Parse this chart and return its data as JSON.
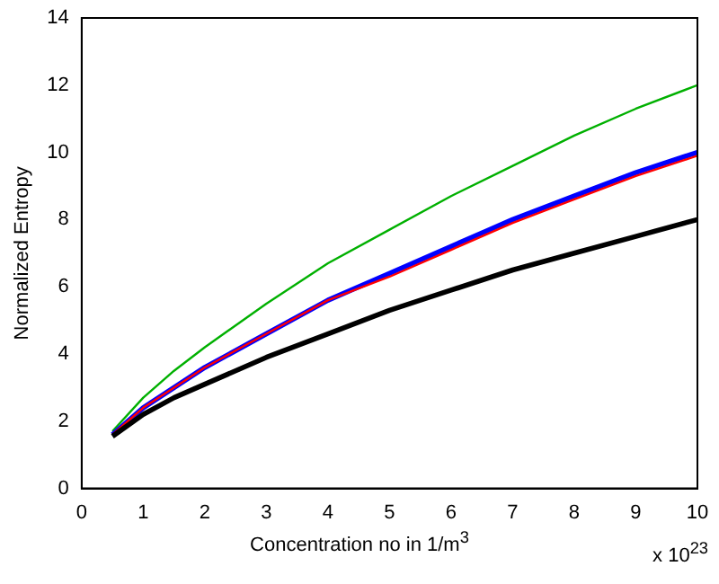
{
  "chart_data": {
    "type": "line",
    "xlabel": "Concentration no in 1/m$^{3}$",
    "ylabel": "Normalized Entropy",
    "annotations": [
      "x 10$^{23}$"
    ],
    "x": [
      0.5,
      1,
      1.5,
      2,
      3,
      4,
      5,
      6,
      7,
      8,
      9,
      10
    ],
    "series": [
      {
        "color": "#00b000",
        "values": [
          1.7,
          2.7,
          3.5,
          4.2,
          5.5,
          6.7,
          7.7,
          8.7,
          9.6,
          10.5,
          11.3,
          12.0
        ]
      },
      {
        "color": "#0000ff",
        "values": [
          1.6,
          2.4,
          3.0,
          3.6,
          4.6,
          5.6,
          6.4,
          7.2,
          8.0,
          8.7,
          9.4,
          10.0
        ]
      },
      {
        "color": "#ff0000",
        "values": [
          1.6,
          2.4,
          3.0,
          3.6,
          4.6,
          5.6,
          6.3,
          7.1,
          7.9,
          8.6,
          9.3,
          9.9
        ]
      },
      {
        "color": "#000000",
        "values": [
          1.55,
          2.2,
          2.7,
          3.1,
          3.9,
          4.6,
          5.3,
          5.9,
          6.5,
          7.0,
          7.5,
          8.0
        ]
      }
    ],
    "xlim": [
      0,
      10
    ],
    "xticks": [
      0,
      1,
      2,
      3,
      4,
      5,
      6,
      7,
      8,
      9,
      10
    ],
    "ylim": [
      0,
      14
    ],
    "yticks": [
      0,
      2,
      4,
      6,
      8,
      10,
      12,
      14
    ],
    "grid": false,
    "legend": false,
    "marker": "none",
    "line_style": "solid"
  }
}
